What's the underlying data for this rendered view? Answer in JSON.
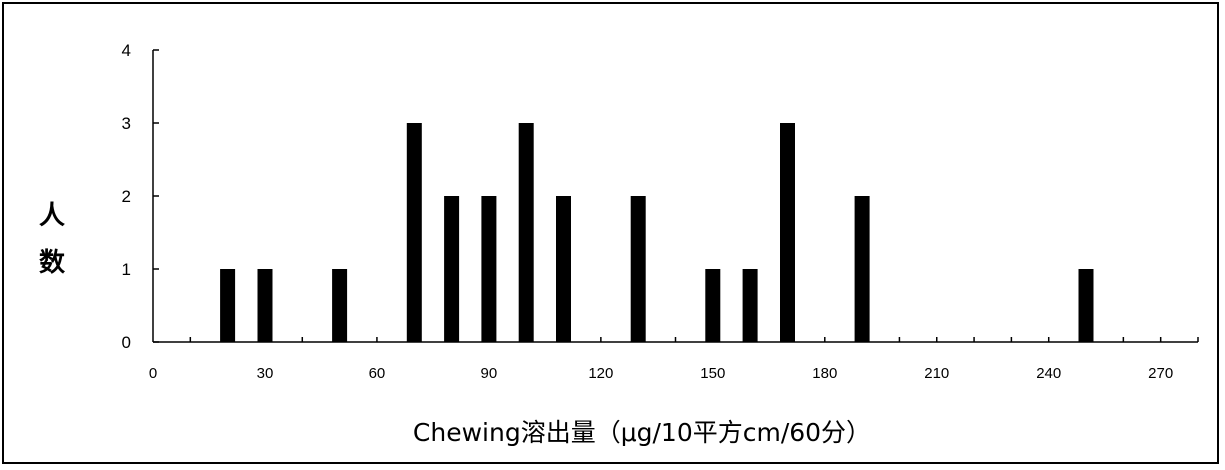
{
  "chart_data": {
    "type": "bar",
    "title": "",
    "xlabel": "Chewing溶出量（μg/10平方cm/60分）",
    "ylabel_lines": [
      "人",
      "数"
    ],
    "xlim": [
      0,
      280
    ],
    "ylim": [
      0,
      4
    ],
    "x_ticks": [
      0,
      30,
      60,
      90,
      120,
      150,
      180,
      210,
      240,
      270
    ],
    "y_ticks": [
      0,
      1,
      2,
      3,
      4
    ],
    "x_minor_step": 10,
    "grid": false,
    "legend": "none",
    "bar_color": "#000000",
    "x": [
      20,
      30,
      50,
      70,
      80,
      90,
      100,
      110,
      130,
      150,
      160,
      170,
      190,
      250
    ],
    "values": [
      1,
      1,
      1,
      3,
      2,
      2,
      3,
      2,
      2,
      1,
      1,
      3,
      2,
      1
    ]
  }
}
